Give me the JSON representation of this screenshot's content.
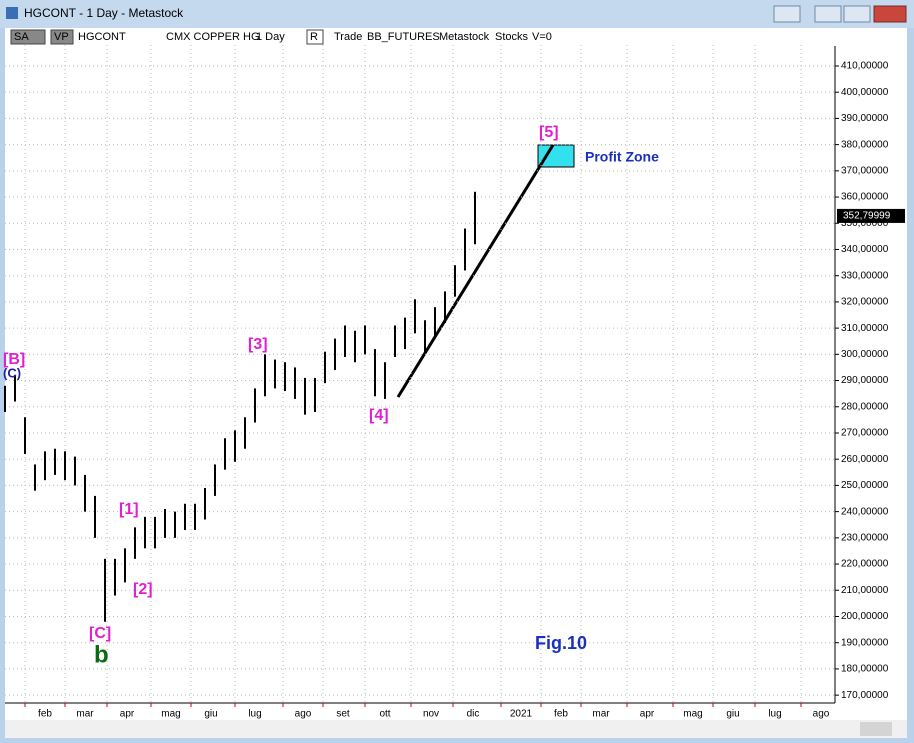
{
  "window": {
    "title": "HGCONT - 1 Day - Metastock",
    "toolbar": [
      "SA",
      "VP",
      "HGCONT",
      "CMX COPPER HG",
      "1 Day",
      "R",
      "Trade",
      "BB_FUTURES",
      "Metastock",
      "Stocks",
      "V=0"
    ]
  },
  "chart_data": {
    "type": "ohlc",
    "color": "#000000",
    "x": [
      0,
      5,
      10,
      15,
      20,
      25,
      30,
      35,
      40,
      45,
      50,
      55,
      60,
      65,
      70,
      75,
      80,
      85,
      90,
      95,
      100,
      105,
      110,
      115,
      120,
      125,
      130,
      135,
      140,
      145,
      150,
      155,
      160,
      165,
      170,
      175,
      180,
      185,
      190,
      195,
      200,
      205,
      210,
      215,
      220,
      225,
      230,
      235
    ],
    "high": [
      288,
      292,
      276,
      258,
      263,
      264,
      263,
      261,
      254,
      246,
      222,
      222,
      226,
      234,
      238,
      238,
      241,
      240,
      243,
      243,
      249,
      258,
      268,
      271,
      276,
      287,
      300,
      298,
      297,
      295,
      291,
      291,
      301,
      306,
      311,
      309,
      311,
      302,
      297,
      311,
      314,
      321,
      313,
      318,
      324,
      334,
      348,
      362
    ],
    "low": [
      278,
      282,
      262,
      248,
      252,
      254,
      252,
      250,
      240,
      230,
      198,
      208,
      213,
      222,
      226,
      226,
      230,
      230,
      233,
      233,
      237,
      246,
      256,
      259,
      264,
      274,
      284,
      287,
      286,
      283,
      277,
      278,
      289,
      294,
      299,
      297,
      300,
      284,
      283,
      299,
      302,
      308,
      301,
      306,
      312,
      322,
      332,
      342
    ],
    "xlim": [
      0,
      415
    ],
    "xticks": [
      {
        "value": 20,
        "label": "feb"
      },
      {
        "value": 40,
        "label": "mar"
      },
      {
        "value": 61,
        "label": "apr"
      },
      {
        "value": 83,
        "label": "mag"
      },
      {
        "value": 103,
        "label": "giu"
      },
      {
        "value": 125,
        "label": "lug"
      },
      {
        "value": 149,
        "label": "ago"
      },
      {
        "value": 169,
        "label": "set"
      },
      {
        "value": 190,
        "label": "ott"
      },
      {
        "value": 213,
        "label": "nov"
      },
      {
        "value": 234,
        "label": "dic"
      },
      {
        "value": 258,
        "label": "2021"
      },
      {
        "value": 278,
        "label": "feb"
      },
      {
        "value": 298,
        "label": "mar"
      },
      {
        "value": 321,
        "label": "apr"
      },
      {
        "value": 344,
        "label": "mag"
      },
      {
        "value": 364,
        "label": "giu"
      },
      {
        "value": 385,
        "label": "lug"
      },
      {
        "value": 408,
        "label": "ago"
      }
    ],
    "ylim": [
      167,
      418
    ],
    "yticks": [
      {
        "value": 170,
        "label": "170,00000"
      },
      {
        "value": 180,
        "label": "180,00000"
      },
      {
        "value": 190,
        "label": "190,00000"
      },
      {
        "value": 200,
        "label": "200,00000"
      },
      {
        "value": 210,
        "label": "210,00000"
      },
      {
        "value": 220,
        "label": "220,00000"
      },
      {
        "value": 230,
        "label": "230,00000"
      },
      {
        "value": 240,
        "label": "240,00000"
      },
      {
        "value": 250,
        "label": "250,00000"
      },
      {
        "value": 260,
        "label": "260,00000"
      },
      {
        "value": 270,
        "label": "270,00000"
      },
      {
        "value": 280,
        "label": "280,00000"
      },
      {
        "value": 290,
        "label": "290,00000"
      },
      {
        "value": 300,
        "label": "300,00000"
      },
      {
        "value": 310,
        "label": "310,00000"
      },
      {
        "value": 320,
        "label": "320,00000"
      },
      {
        "value": 330,
        "label": "330,00000"
      },
      {
        "value": 340,
        "label": "340,00000"
      },
      {
        "value": 350,
        "label": "350,00000"
      },
      {
        "value": 360,
        "label": "360,00000"
      },
      {
        "value": 370,
        "label": "370,00000"
      },
      {
        "value": 380,
        "label": "380,00000"
      },
      {
        "value": 390,
        "label": "390,00000"
      },
      {
        "value": 400,
        "label": "400,00000"
      },
      {
        "value": 410,
        "label": "410,00000"
      }
    ],
    "grid": true,
    "last_price": {
      "value": 352.8,
      "label": "352,79999"
    },
    "annotations": [
      "[B]",
      "(C)",
      "[C]",
      "b",
      "[1]",
      "[2]",
      "[3]",
      "[4]",
      "[5]",
      "Profit Zone",
      "Fig.10"
    ]
  }
}
